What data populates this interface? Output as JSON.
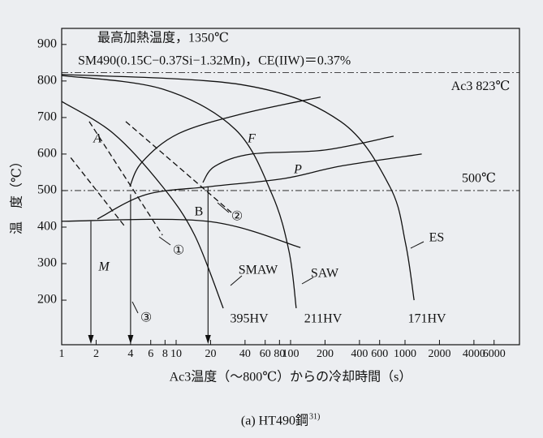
{
  "chart_data": {
    "type": "cct-diagram",
    "title": "最高加熱温度，1350℃",
    "subtitle": "SM490(0.15C−0.37Si−1.32Mn)，CE(IIW)＝0.37%",
    "y_label": "温　度（℃）",
    "x_label": "Ac3温度（～800℃）からの冷却時間（s）",
    "caption": "(a) HT490鋼",
    "caption_ref": "31)",
    "log_x": true,
    "xlim": [
      1,
      10000
    ],
    "ylim": [
      78,
      944
    ],
    "xticks": [
      1,
      2,
      4,
      6,
      8,
      10,
      20,
      40,
      60,
      80,
      100,
      200,
      400,
      600,
      1000,
      2000,
      4000,
      6000
    ],
    "yticks": [
      200,
      300,
      400,
      500,
      600,
      700,
      800,
      900
    ],
    "color": "#111111",
    "ref_lines": [
      {
        "value": 823,
        "label": "Ac3 823℃"
      },
      {
        "value": 500,
        "label": "500℃"
      }
    ],
    "curves": [
      {
        "x": [
          1,
          2.84,
          7.6,
          14.5,
          25.8
        ],
        "values": [
          744,
          656,
          511,
          378,
          178
        ],
        "dashed": false
      },
      {
        "x": [
          1,
          7.6,
          33,
          69,
          97,
          112
        ],
        "values": [
          815,
          778,
          667,
          489,
          333,
          178
        ],
        "dashed": false
      },
      {
        "x": [
          1,
          38.8,
          274,
          736,
          1010,
          1200
        ],
        "values": [
          818,
          789,
          689,
          511,
          356,
          200
        ],
        "dashed": false
      },
      {
        "x": [
          3.94,
          5.04,
          10.5,
          38.8,
          183
        ],
        "values": [
          511,
          578,
          656,
          711,
          756
        ],
        "dashed": false
      },
      {
        "x": [
          17.1,
          21.9,
          45.6,
          198,
          795
        ],
        "values": [
          522,
          567,
          600,
          611,
          649
        ],
        "dashed": false
      },
      {
        "x": [
          2.05,
          5.47,
          20,
          87.8,
          274,
          1400
        ],
        "values": [
          422,
          489,
          511,
          533,
          567,
          600
        ],
        "dashed": false
      },
      {
        "x": [
          1,
          18.6,
          122
        ],
        "values": [
          416,
          416,
          344
        ],
        "dashed": false
      },
      {
        "x": [
          1.2,
          3.6
        ],
        "values": [
          590,
          400
        ],
        "dashed": true
      },
      {
        "x": [
          1.74,
          7.6
        ],
        "values": [
          689,
          378
        ],
        "dashed": true
      },
      {
        "x": [
          3.63,
          30.4
        ],
        "values": [
          689,
          440
        ],
        "dashed": true
      }
    ],
    "drop_lines": [
      {
        "x": 1.8,
        "y": 416
      },
      {
        "x": 4,
        "y": 490
      },
      {
        "x": 19,
        "y": 510
      }
    ],
    "annotations": [
      "A",
      "F",
      "P",
      "B",
      "M",
      "①",
      "②",
      "③",
      "SMAW",
      "SAW",
      "ES",
      "395HV",
      "211HV",
      "171HV"
    ]
  }
}
